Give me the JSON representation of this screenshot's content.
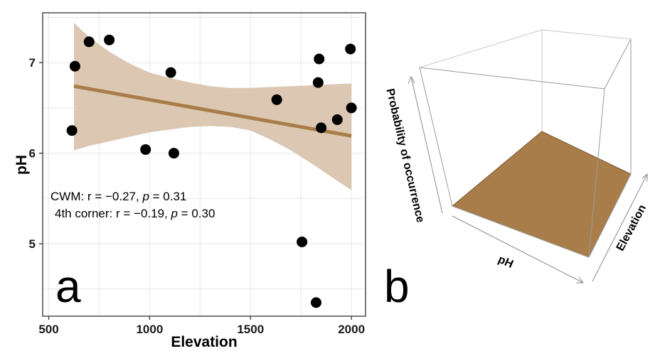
{
  "chart_data": [
    {
      "type": "scatter",
      "panel_label": "a",
      "title": "",
      "xlabel": "Elevation",
      "ylabel": "pH",
      "xlim": [
        470,
        2070
      ],
      "ylim": [
        4.2,
        7.55
      ],
      "xticks": [
        500,
        1000,
        1500,
        2000
      ],
      "yticks": [
        5,
        6,
        7
      ],
      "xtick_labels": [
        "500",
        "1000",
        "1500",
        "2000"
      ],
      "ytick_labels": [
        "5",
        "6",
        "7"
      ],
      "grid": true,
      "points": [
        {
          "x": 615,
          "y": 6.25
        },
        {
          "x": 630,
          "y": 6.96
        },
        {
          "x": 700,
          "y": 7.23
        },
        {
          "x": 800,
          "y": 7.25
        },
        {
          "x": 980,
          "y": 6.04
        },
        {
          "x": 1105,
          "y": 6.89
        },
        {
          "x": 1120,
          "y": 6.0
        },
        {
          "x": 1630,
          "y": 6.59
        },
        {
          "x": 1755,
          "y": 5.02
        },
        {
          "x": 1825,
          "y": 4.35
        },
        {
          "x": 1835,
          "y": 6.78
        },
        {
          "x": 1840,
          "y": 7.04
        },
        {
          "x": 1850,
          "y": 6.28
        },
        {
          "x": 1930,
          "y": 6.37
        },
        {
          "x": 1995,
          "y": 7.15
        },
        {
          "x": 2000,
          "y": 6.5
        }
      ],
      "fit_line": {
        "x": [
          625,
          2000
        ],
        "y": [
          6.74,
          6.19
        ]
      },
      "confidence_band": {
        "x": [
          625,
          700,
          800,
          900,
          1000,
          1100,
          1200,
          1300,
          1400,
          1500,
          1600,
          1700,
          1800,
          1900,
          2000
        ],
        "upper": [
          7.44,
          7.28,
          7.12,
          6.99,
          6.89,
          6.83,
          6.78,
          6.74,
          6.72,
          6.72,
          6.73,
          6.74,
          6.75,
          6.76,
          6.77
        ],
        "lower": [
          6.03,
          6.08,
          6.13,
          6.18,
          6.23,
          6.26,
          6.29,
          6.3,
          6.29,
          6.25,
          6.15,
          6.03,
          5.89,
          5.74,
          5.59
        ]
      },
      "annotations": [
        {
          "pre": "CWM: r = −0.27, ",
          "italic": "p",
          "post": " = 0.31"
        },
        {
          "pre": "4th corner: r = −0.19, ",
          "italic": "p",
          "post": " = 0.30"
        }
      ],
      "colors": {
        "fit_line": "#a87d49",
        "band": "#dcc7b2",
        "points": "#000000",
        "grid": "#e6e6e6",
        "frame": "#333333"
      }
    },
    {
      "type": "surface3d",
      "panel_label": "b",
      "title": "",
      "xlabel": "pH",
      "ylabel": "Elevation",
      "zlabel": "Probability of occurrence",
      "colors": {
        "surface": "#a87d49",
        "surface_edge": "#7a5630",
        "box": "#bdbdbd"
      }
    }
  ]
}
